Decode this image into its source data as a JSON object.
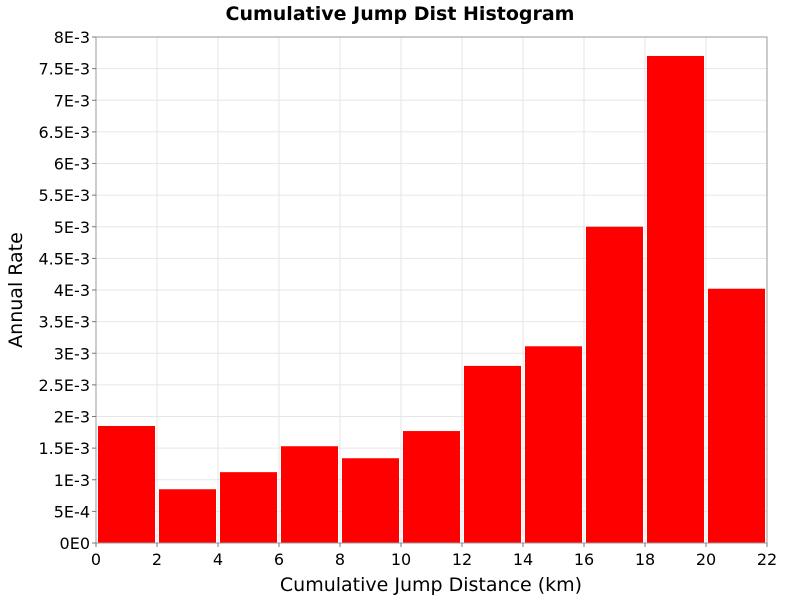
{
  "chart_data": {
    "type": "bar",
    "title": "Cumulative Jump Dist Histogram",
    "xlabel": "Cumulative Jump Distance (km)",
    "ylabel": "Annual Rate",
    "xlim": [
      0,
      22
    ],
    "ylim": [
      0,
      0.008
    ],
    "x_ticks": [
      0,
      2,
      4,
      6,
      8,
      10,
      12,
      14,
      16,
      18,
      20,
      22
    ],
    "x_tick_labels": [
      "0",
      "2",
      "4",
      "6",
      "8",
      "10",
      "12",
      "14",
      "16",
      "18",
      "20",
      "22"
    ],
    "y_ticks": [
      0,
      0.0005,
      0.001,
      0.0015,
      0.002,
      0.0025,
      0.003,
      0.0035,
      0.004,
      0.0045,
      0.005,
      0.0055,
      0.006,
      0.0065,
      0.007,
      0.0075,
      0.008
    ],
    "y_tick_labels": [
      "0E0",
      "5E-4",
      "1E-3",
      "1.5E-3",
      "2E-3",
      "2.5E-3",
      "3E-3",
      "3.5E-3",
      "4E-3",
      "4.5E-3",
      "5E-3",
      "5.5E-3",
      "6E-3",
      "6.5E-3",
      "7E-3",
      "7.5E-3",
      "8E-3"
    ],
    "bins": [
      {
        "x0": 0,
        "x1": 2,
        "value": 0.00185
      },
      {
        "x0": 2,
        "x1": 4,
        "value": 0.00085
      },
      {
        "x0": 4,
        "x1": 6,
        "value": 0.00112
      },
      {
        "x0": 6,
        "x1": 8,
        "value": 0.00153
      },
      {
        "x0": 8,
        "x1": 10,
        "value": 0.00134
      },
      {
        "x0": 10,
        "x1": 12,
        "value": 0.00177
      },
      {
        "x0": 12,
        "x1": 14,
        "value": 0.0028
      },
      {
        "x0": 14,
        "x1": 16,
        "value": 0.00311
      },
      {
        "x0": 16,
        "x1": 18,
        "value": 0.005
      },
      {
        "x0": 18,
        "x1": 20,
        "value": 0.0077
      },
      {
        "x0": 20,
        "x1": 22,
        "value": 0.00402
      }
    ],
    "bar_color": "#ff0000",
    "grid": true,
    "legend": false
  }
}
